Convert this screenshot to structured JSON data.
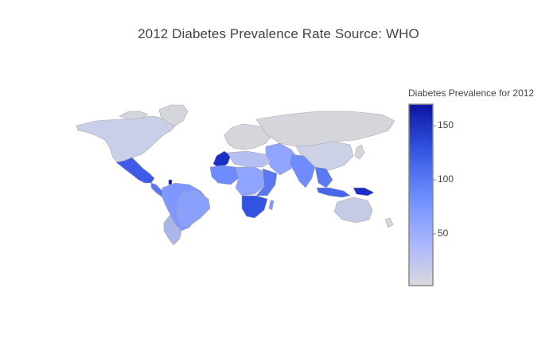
{
  "title": "2012 Diabetes Prevalence Rate Source: WHO",
  "colorbar": {
    "title": "Diabetes Prevalence for 2012",
    "range": [
      2,
      170
    ],
    "ticks": [
      {
        "value": 50,
        "label": "50"
      },
      {
        "value": 100,
        "label": "100"
      },
      {
        "value": 150,
        "label": "150"
      }
    ],
    "colors": [
      "#d8d8de",
      "#a6b4ff",
      "#6a8cff",
      "#3355e0",
      "#0a14a0"
    ]
  },
  "map": {
    "projection": "natural earth",
    "land_color": "#d4d6dc",
    "border_color": "#a8a8a8",
    "regions_shown": [
      {
        "region": "North America",
        "value": 20
      },
      {
        "region": "Mexico",
        "value": 120
      },
      {
        "region": "Central America",
        "value": 95
      },
      {
        "region": "South America North",
        "value": 55
      },
      {
        "region": "South America South",
        "value": 30
      },
      {
        "region": "Europe",
        "value": 3
      },
      {
        "region": "Russia",
        "value": 4
      },
      {
        "region": "Morocco",
        "value": 160
      },
      {
        "region": "West Africa",
        "value": 85
      },
      {
        "region": "Central Africa",
        "value": 75
      },
      {
        "region": "East Africa",
        "value": 65
      },
      {
        "region": "Southern Africa",
        "value": 120
      },
      {
        "region": "Middle East",
        "value": 45
      },
      {
        "region": "South Asia",
        "value": 70
      },
      {
        "region": "Southeast Asia",
        "value": 90
      },
      {
        "region": "Indonesia",
        "value": 115
      },
      {
        "region": "Papua New Guinea",
        "value": 140
      },
      {
        "region": "China",
        "value": 10
      },
      {
        "region": "Australia",
        "value": 8
      }
    ]
  }
}
